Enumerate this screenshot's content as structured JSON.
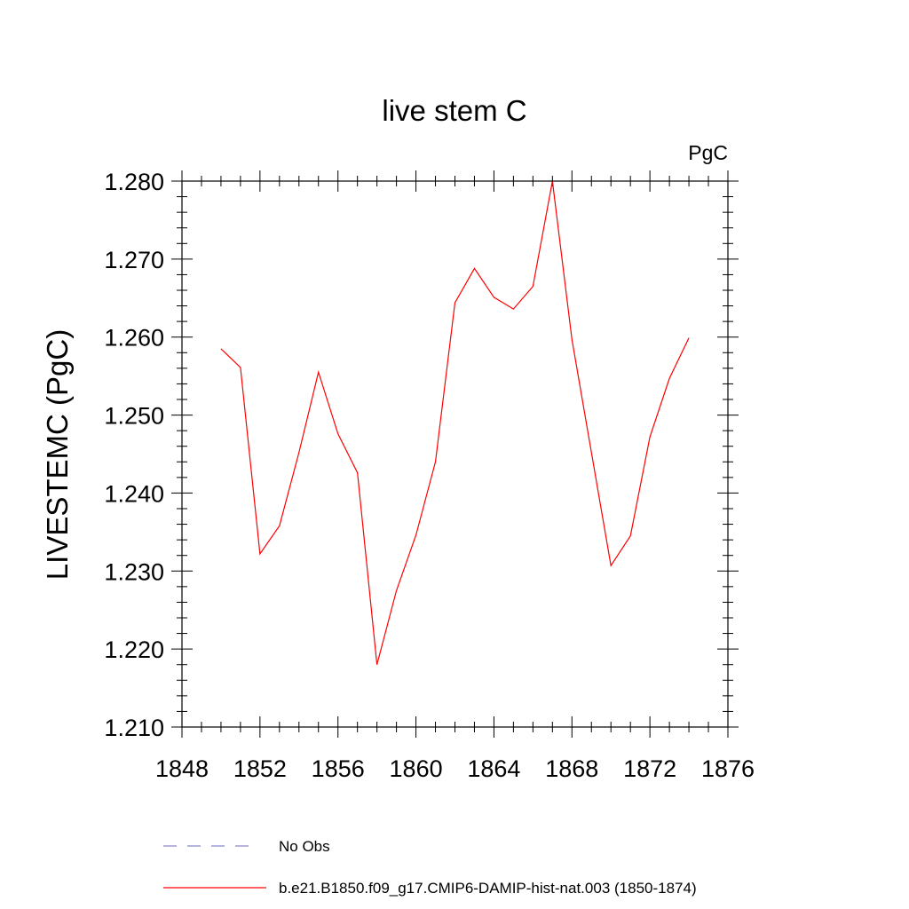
{
  "chart_data": {
    "type": "line",
    "title": "live stem C",
    "units": "PgC",
    "ylabel": "LIVESTEMC  (PgC)",
    "xlabel": "",
    "xlim": [
      1848,
      1876
    ],
    "ylim": [
      1.21,
      1.28
    ],
    "x_ticks": [
      "1848",
      "1852",
      "1856",
      "1860",
      "1864",
      "1868",
      "1872",
      "1876"
    ],
    "y_ticks": [
      "1.210",
      "1.220",
      "1.230",
      "1.240",
      "1.250",
      "1.260",
      "1.270",
      "1.280"
    ],
    "grid": false,
    "legend_position": "bottom",
    "series": [
      {
        "name": "b.e21.B1850.f09_g17.CMIP6-DAMIP-hist-nat.003 (1850-1874)",
        "color": "#ff0000",
        "style": "solid",
        "x": [
          1850,
          1851,
          1852,
          1853,
          1854,
          1855,
          1856,
          1857,
          1858,
          1859,
          1860,
          1861,
          1862,
          1863,
          1864,
          1865,
          1866,
          1867,
          1868,
          1869,
          1870,
          1871,
          1872,
          1873,
          1874
        ],
        "y": [
          1.2585,
          1.2561,
          1.2322,
          1.2358,
          1.2452,
          1.2555,
          1.2476,
          1.2426,
          1.218,
          1.2275,
          1.2346,
          1.244,
          1.2644,
          1.2688,
          1.2651,
          1.2636,
          1.2665,
          1.28,
          1.2597,
          1.2452,
          1.2307,
          1.2345,
          1.2472,
          1.2547,
          1.2599
        ]
      }
    ],
    "legend": [
      {
        "label": "No Obs",
        "color": "#8888cc",
        "style": "dashed"
      },
      {
        "label": "b.e21.B1850.f09_g17.CMIP6-DAMIP-hist-nat.003 (1850-1874)",
        "color": "#ff0000",
        "style": "solid"
      }
    ]
  }
}
